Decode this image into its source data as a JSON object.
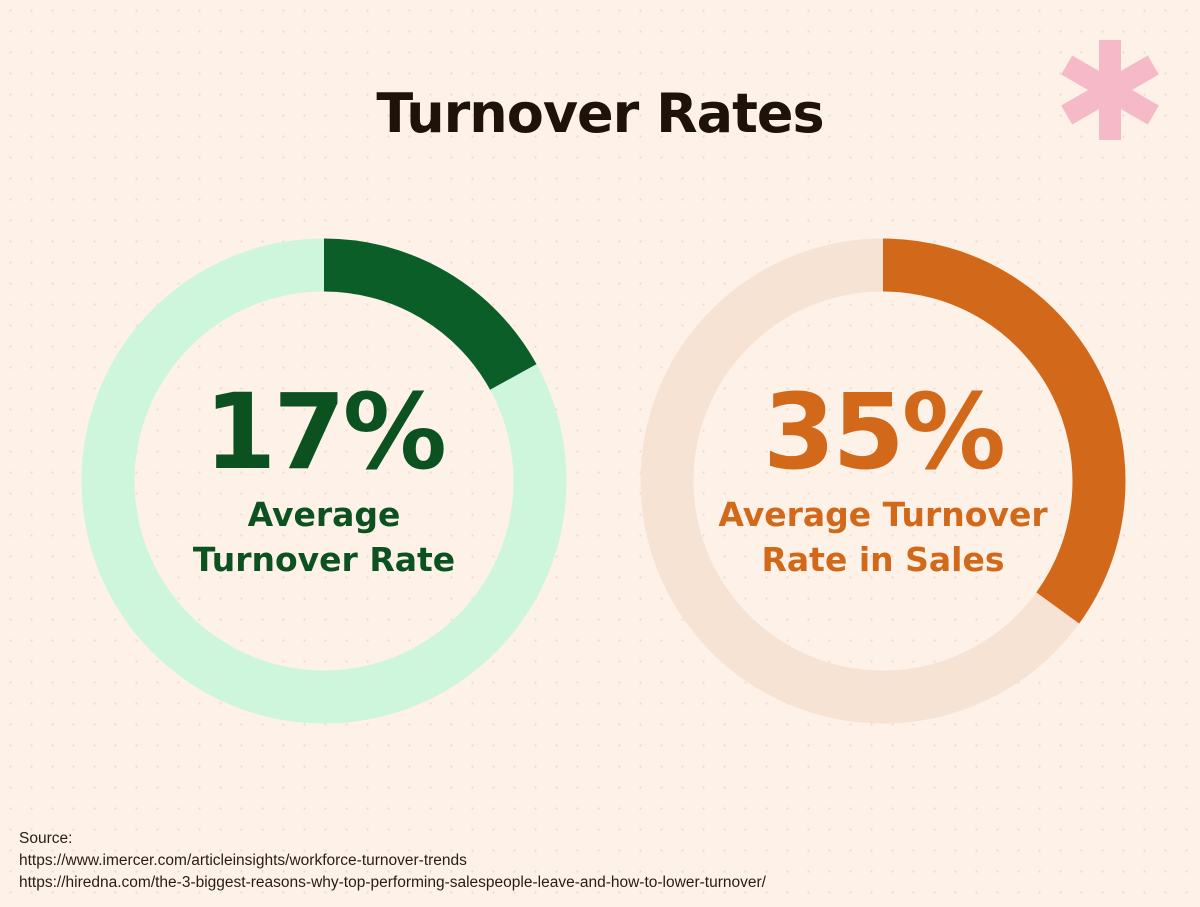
{
  "title": "Turnover Rates",
  "chart_data": [
    {
      "type": "donut",
      "value": 17,
      "value_label": "17%",
      "caption_lines": [
        "Average",
        "Turnover Rate"
      ],
      "color": "#0c5e28",
      "track_color": "#cef6dd",
      "text_color": "#0c5120"
    },
    {
      "type": "donut",
      "value": 35,
      "value_label": "35%",
      "caption_lines": [
        "Average Turnover",
        "Rate in Sales"
      ],
      "color": "#d2691a",
      "track_color": "#f7e3d4",
      "text_color": "#d2691a"
    }
  ],
  "decoration": {
    "icon": "asterisk-icon",
    "color": "#f6b9c8"
  },
  "source": {
    "label": "Source:",
    "links": [
      "https://www.imercer.com/articleinsights/workforce-turnover-trends",
      "https://hiredna.com/the-3-biggest-reasons-why-top-performing-salespeople-leave-and-how-to-lower-turnover/"
    ]
  }
}
